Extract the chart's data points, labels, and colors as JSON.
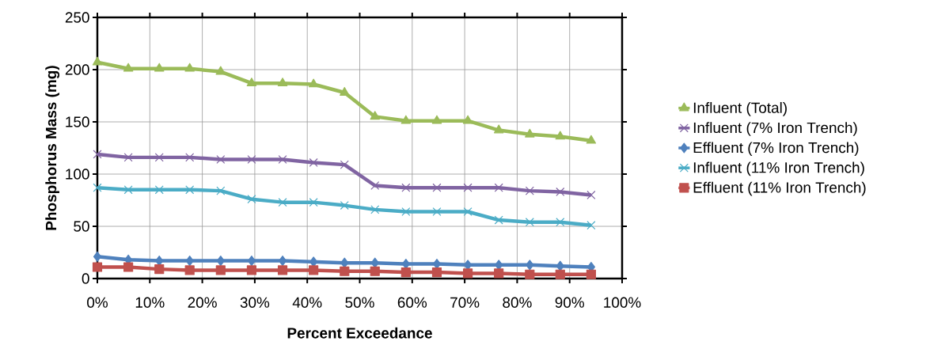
{
  "chart_data": {
    "type": "line",
    "xlabel": "Percent Exceedance",
    "ylabel": "Phosphorus Mass (mg)",
    "x": [
      0,
      5.9,
      11.8,
      17.6,
      23.5,
      29.4,
      35.3,
      41.2,
      47.1,
      52.9,
      58.8,
      64.7,
      70.6,
      76.5,
      82.4,
      88.2,
      94.1
    ],
    "series": [
      {
        "name": "Influent (Total)",
        "color": "#9bbb59",
        "marker": "triangle",
        "values": [
          207,
          201,
          201,
          201,
          198,
          187,
          187,
          186,
          178,
          155,
          151,
          151,
          151,
          142,
          138,
          136,
          132
        ]
      },
      {
        "name": "Influent (7% Iron Trench)",
        "color": "#8064a2",
        "marker": "cross",
        "values": [
          119,
          116,
          116,
          116,
          114,
          114,
          114,
          111,
          109,
          89,
          87,
          87,
          87,
          87,
          84,
          83,
          80
        ]
      },
      {
        "name": "Effluent (7% Iron Trench)",
        "color": "#4f81bd",
        "marker": "diamond",
        "values": [
          21,
          18,
          17,
          17,
          17,
          17,
          17,
          16,
          15,
          15,
          14,
          14,
          13,
          13,
          13,
          12,
          11
        ]
      },
      {
        "name": "Influent (11% Iron Trench)",
        "color": "#4bacc6",
        "marker": "cross",
        "values": [
          87,
          85,
          85,
          85,
          84,
          76,
          73,
          73,
          70,
          66,
          64,
          64,
          64,
          56,
          54,
          54,
          51
        ]
      },
      {
        "name": "Effluent (11% Iron Trench)",
        "color": "#c0504d",
        "marker": "square",
        "values": [
          11,
          11,
          9,
          8,
          8,
          8,
          8,
          8,
          7,
          7,
          6,
          6,
          5,
          5,
          4,
          4,
          4
        ]
      }
    ],
    "xlim": [
      0,
      100
    ],
    "xticks": [
      {
        "value": 0,
        "label": "0%"
      },
      {
        "value": 10,
        "label": "10%"
      },
      {
        "value": 20,
        "label": "20%"
      },
      {
        "value": 30,
        "label": "30%"
      },
      {
        "value": 40,
        "label": "40%"
      },
      {
        "value": 50,
        "label": "50%"
      },
      {
        "value": 60,
        "label": "60%"
      },
      {
        "value": 70,
        "label": "70%"
      },
      {
        "value": 80,
        "label": "80%"
      },
      {
        "value": 90,
        "label": "90%"
      },
      {
        "value": 100,
        "label": "100%"
      }
    ],
    "ylim": [
      0,
      250
    ],
    "yticks": [
      0,
      50,
      100,
      150,
      200,
      250
    ],
    "grid": true,
    "legend": "right",
    "line_style": "solid"
  }
}
